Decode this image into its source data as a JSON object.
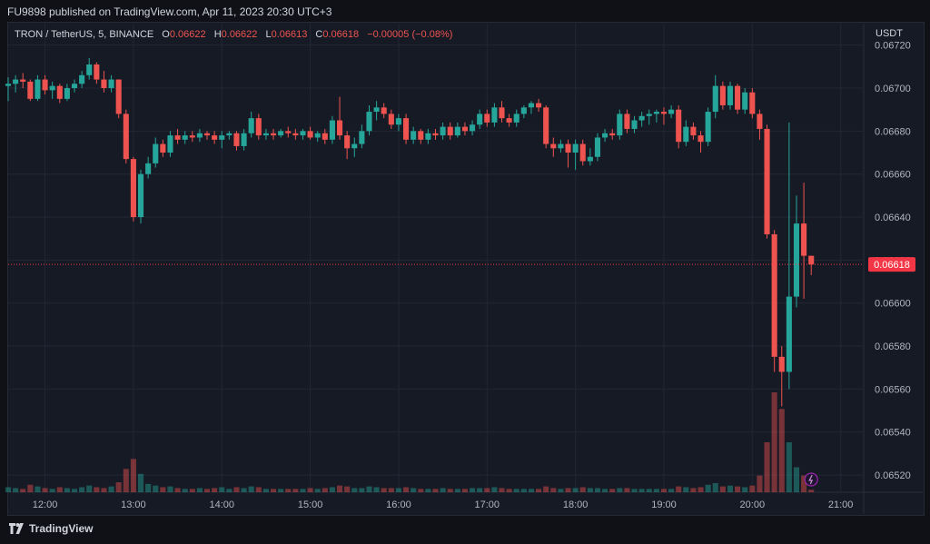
{
  "header": {
    "publisher": "FU9898 published on TradingView.com, Apr 11, 2023 20:30 UTC+3"
  },
  "legend": {
    "symbol": "TRON / TetherUS, 5, BINANCE",
    "o_label": "O",
    "o": "0.06622",
    "h_label": "H",
    "h": "0.06622",
    "l_label": "L",
    "l": "0.06613",
    "c_label": "C",
    "c": "0.06618",
    "change": "−0.00005 (−0.08%)"
  },
  "price_axis": {
    "unit": "USDT",
    "last_price": "0.06618",
    "last_price_value": 0.06618
  },
  "footer": {
    "brand": "TradingView"
  },
  "colors": {
    "up": "#26a69a",
    "down": "#ef5350",
    "background": "#161a25",
    "grid": "#232735",
    "last_price_tag": "#f23645"
  },
  "chart_data": {
    "type": "candlestick",
    "timeframe": "5",
    "x_tick_labels": [
      "12:00",
      "13:00",
      "14:00",
      "15:00",
      "16:00",
      "17:00",
      "18:00",
      "19:00",
      "20:00",
      "21:00"
    ],
    "y_tick_labels": [
      "0.06720",
      "0.06700",
      "0.06680",
      "0.06660",
      "0.06640",
      "0.06620",
      "0.06600",
      "0.06580",
      "0.06560",
      "0.06540",
      "0.06520"
    ],
    "ylim": [
      0.06512,
      0.0673
    ],
    "x_start": "11:35",
    "x_end": "21:15",
    "grid": true,
    "candles": [
      {
        "t": "11:35",
        "o": 0.06701,
        "h": 0.06705,
        "l": 0.06694,
        "c": 0.06702,
        "v": 6
      },
      {
        "t": "11:40",
        "o": 0.06702,
        "h": 0.06706,
        "l": 0.06698,
        "c": 0.06704,
        "v": 5
      },
      {
        "t": "11:45",
        "o": 0.06704,
        "h": 0.06707,
        "l": 0.067,
        "c": 0.06703,
        "v": 4
      },
      {
        "t": "11:50",
        "o": 0.06703,
        "h": 0.06704,
        "l": 0.06694,
        "c": 0.06695,
        "v": 9
      },
      {
        "t": "11:55",
        "o": 0.06695,
        "h": 0.06706,
        "l": 0.06694,
        "c": 0.06704,
        "v": 7
      },
      {
        "t": "12:00",
        "o": 0.06704,
        "h": 0.06706,
        "l": 0.06697,
        "c": 0.06699,
        "v": 5
      },
      {
        "t": "12:05",
        "o": 0.06699,
        "h": 0.06703,
        "l": 0.06695,
        "c": 0.06701,
        "v": 4
      },
      {
        "t": "12:10",
        "o": 0.06701,
        "h": 0.06702,
        "l": 0.06693,
        "c": 0.06695,
        "v": 6
      },
      {
        "t": "12:15",
        "o": 0.06695,
        "h": 0.06702,
        "l": 0.06694,
        "c": 0.067,
        "v": 5
      },
      {
        "t": "12:20",
        "o": 0.067,
        "h": 0.06704,
        "l": 0.06698,
        "c": 0.06702,
        "v": 4
      },
      {
        "t": "12:25",
        "o": 0.06702,
        "h": 0.06708,
        "l": 0.067,
        "c": 0.06706,
        "v": 6
      },
      {
        "t": "12:30",
        "o": 0.06706,
        "h": 0.06714,
        "l": 0.06704,
        "c": 0.06711,
        "v": 8
      },
      {
        "t": "12:35",
        "o": 0.06711,
        "h": 0.06712,
        "l": 0.06702,
        "c": 0.06704,
        "v": 6
      },
      {
        "t": "12:40",
        "o": 0.06704,
        "h": 0.06708,
        "l": 0.06698,
        "c": 0.067,
        "v": 5
      },
      {
        "t": "12:45",
        "o": 0.067,
        "h": 0.06706,
        "l": 0.06698,
        "c": 0.06704,
        "v": 7
      },
      {
        "t": "12:50",
        "o": 0.06704,
        "h": 0.06704,
        "l": 0.06686,
        "c": 0.06688,
        "v": 12
      },
      {
        "t": "12:55",
        "o": 0.06688,
        "h": 0.0669,
        "l": 0.06665,
        "c": 0.06667,
        "v": 28
      },
      {
        "t": "13:00",
        "o": 0.06667,
        "h": 0.06668,
        "l": 0.06638,
        "c": 0.0664,
        "v": 40
      },
      {
        "t": "13:05",
        "o": 0.0664,
        "h": 0.06662,
        "l": 0.06637,
        "c": 0.0666,
        "v": 22
      },
      {
        "t": "13:10",
        "o": 0.0666,
        "h": 0.06668,
        "l": 0.06658,
        "c": 0.06665,
        "v": 10
      },
      {
        "t": "13:15",
        "o": 0.06665,
        "h": 0.06677,
        "l": 0.06663,
        "c": 0.06674,
        "v": 8
      },
      {
        "t": "13:20",
        "o": 0.06674,
        "h": 0.06676,
        "l": 0.06668,
        "c": 0.0667,
        "v": 6
      },
      {
        "t": "13:25",
        "o": 0.0667,
        "h": 0.0668,
        "l": 0.06668,
        "c": 0.06678,
        "v": 7
      },
      {
        "t": "13:30",
        "o": 0.06678,
        "h": 0.06681,
        "l": 0.06674,
        "c": 0.06676,
        "v": 5
      },
      {
        "t": "13:35",
        "o": 0.06676,
        "h": 0.0668,
        "l": 0.06674,
        "c": 0.06678,
        "v": 4
      },
      {
        "t": "13:40",
        "o": 0.06678,
        "h": 0.0668,
        "l": 0.06675,
        "c": 0.06677,
        "v": 4
      },
      {
        "t": "13:45",
        "o": 0.06677,
        "h": 0.06681,
        "l": 0.06675,
        "c": 0.06679,
        "v": 5
      },
      {
        "t": "13:50",
        "o": 0.06679,
        "h": 0.0668,
        "l": 0.06676,
        "c": 0.06678,
        "v": 4
      },
      {
        "t": "13:55",
        "o": 0.06678,
        "h": 0.0668,
        "l": 0.06674,
        "c": 0.06676,
        "v": 5
      },
      {
        "t": "14:00",
        "o": 0.06676,
        "h": 0.0668,
        "l": 0.06672,
        "c": 0.06678,
        "v": 6
      },
      {
        "t": "14:05",
        "o": 0.06678,
        "h": 0.0668,
        "l": 0.06676,
        "c": 0.06679,
        "v": 4
      },
      {
        "t": "14:10",
        "o": 0.06679,
        "h": 0.0668,
        "l": 0.06671,
        "c": 0.06673,
        "v": 6
      },
      {
        "t": "14:15",
        "o": 0.06673,
        "h": 0.06681,
        "l": 0.06671,
        "c": 0.06679,
        "v": 5
      },
      {
        "t": "14:20",
        "o": 0.06679,
        "h": 0.06689,
        "l": 0.06677,
        "c": 0.06686,
        "v": 7
      },
      {
        "t": "14:25",
        "o": 0.06686,
        "h": 0.06688,
        "l": 0.06676,
        "c": 0.06678,
        "v": 6
      },
      {
        "t": "14:30",
        "o": 0.06678,
        "h": 0.06681,
        "l": 0.06676,
        "c": 0.06679,
        "v": 4
      },
      {
        "t": "14:35",
        "o": 0.06679,
        "h": 0.06681,
        "l": 0.06676,
        "c": 0.06678,
        "v": 4
      },
      {
        "t": "14:40",
        "o": 0.06678,
        "h": 0.06681,
        "l": 0.06677,
        "c": 0.0668,
        "v": 4
      },
      {
        "t": "14:45",
        "o": 0.0668,
        "h": 0.06682,
        "l": 0.06677,
        "c": 0.06679,
        "v": 4
      },
      {
        "t": "14:50",
        "o": 0.06679,
        "h": 0.06681,
        "l": 0.06676,
        "c": 0.06678,
        "v": 4
      },
      {
        "t": "14:55",
        "o": 0.06678,
        "h": 0.06681,
        "l": 0.06676,
        "c": 0.0668,
        "v": 4
      },
      {
        "t": "15:00",
        "o": 0.0668,
        "h": 0.06682,
        "l": 0.06676,
        "c": 0.06677,
        "v": 5
      },
      {
        "t": "15:05",
        "o": 0.06677,
        "h": 0.0668,
        "l": 0.06675,
        "c": 0.06679,
        "v": 4
      },
      {
        "t": "15:10",
        "o": 0.06679,
        "h": 0.06681,
        "l": 0.06674,
        "c": 0.06676,
        "v": 5
      },
      {
        "t": "15:15",
        "o": 0.06676,
        "h": 0.06687,
        "l": 0.06674,
        "c": 0.06685,
        "v": 6
      },
      {
        "t": "15:20",
        "o": 0.06685,
        "h": 0.06696,
        "l": 0.06676,
        "c": 0.06678,
        "v": 8
      },
      {
        "t": "15:25",
        "o": 0.06678,
        "h": 0.0668,
        "l": 0.06667,
        "c": 0.06672,
        "v": 7
      },
      {
        "t": "15:30",
        "o": 0.06672,
        "h": 0.06677,
        "l": 0.06668,
        "c": 0.06674,
        "v": 5
      },
      {
        "t": "15:35",
        "o": 0.06674,
        "h": 0.06683,
        "l": 0.06672,
        "c": 0.0668,
        "v": 5
      },
      {
        "t": "15:40",
        "o": 0.0668,
        "h": 0.06692,
        "l": 0.06678,
        "c": 0.06689,
        "v": 7
      },
      {
        "t": "15:45",
        "o": 0.06689,
        "h": 0.06694,
        "l": 0.06685,
        "c": 0.06691,
        "v": 6
      },
      {
        "t": "15:50",
        "o": 0.06691,
        "h": 0.06693,
        "l": 0.06686,
        "c": 0.06688,
        "v": 5
      },
      {
        "t": "15:55",
        "o": 0.06688,
        "h": 0.0669,
        "l": 0.06681,
        "c": 0.06683,
        "v": 5
      },
      {
        "t": "16:00",
        "o": 0.06683,
        "h": 0.06688,
        "l": 0.0668,
        "c": 0.06686,
        "v": 5
      },
      {
        "t": "16:05",
        "o": 0.06686,
        "h": 0.06688,
        "l": 0.06674,
        "c": 0.06676,
        "v": 6
      },
      {
        "t": "16:10",
        "o": 0.06676,
        "h": 0.06682,
        "l": 0.06674,
        "c": 0.0668,
        "v": 5
      },
      {
        "t": "16:15",
        "o": 0.0668,
        "h": 0.06681,
        "l": 0.06674,
        "c": 0.06676,
        "v": 4
      },
      {
        "t": "16:20",
        "o": 0.06676,
        "h": 0.06681,
        "l": 0.06674,
        "c": 0.06679,
        "v": 4
      },
      {
        "t": "16:25",
        "o": 0.06679,
        "h": 0.06681,
        "l": 0.06676,
        "c": 0.06678,
        "v": 4
      },
      {
        "t": "16:30",
        "o": 0.06678,
        "h": 0.06684,
        "l": 0.06676,
        "c": 0.06682,
        "v": 5
      },
      {
        "t": "16:35",
        "o": 0.06682,
        "h": 0.06684,
        "l": 0.06676,
        "c": 0.06678,
        "v": 4
      },
      {
        "t": "16:40",
        "o": 0.06678,
        "h": 0.06684,
        "l": 0.06677,
        "c": 0.06682,
        "v": 4
      },
      {
        "t": "16:45",
        "o": 0.06682,
        "h": 0.06684,
        "l": 0.06678,
        "c": 0.0668,
        "v": 4
      },
      {
        "t": "16:50",
        "o": 0.0668,
        "h": 0.06685,
        "l": 0.06678,
        "c": 0.06683,
        "v": 5
      },
      {
        "t": "16:55",
        "o": 0.06683,
        "h": 0.0669,
        "l": 0.06681,
        "c": 0.06688,
        "v": 5
      },
      {
        "t": "17:00",
        "o": 0.06688,
        "h": 0.0669,
        "l": 0.06682,
        "c": 0.06684,
        "v": 5
      },
      {
        "t": "17:05",
        "o": 0.06684,
        "h": 0.06693,
        "l": 0.06682,
        "c": 0.06691,
        "v": 6
      },
      {
        "t": "17:10",
        "o": 0.06691,
        "h": 0.06694,
        "l": 0.06684,
        "c": 0.06686,
        "v": 5
      },
      {
        "t": "17:15",
        "o": 0.06686,
        "h": 0.06688,
        "l": 0.06682,
        "c": 0.06684,
        "v": 4
      },
      {
        "t": "17:20",
        "o": 0.06684,
        "h": 0.0669,
        "l": 0.06682,
        "c": 0.06688,
        "v": 4
      },
      {
        "t": "17:25",
        "o": 0.06688,
        "h": 0.06692,
        "l": 0.06686,
        "c": 0.06691,
        "v": 4
      },
      {
        "t": "17:30",
        "o": 0.06691,
        "h": 0.06694,
        "l": 0.06688,
        "c": 0.06693,
        "v": 4
      },
      {
        "t": "17:35",
        "o": 0.06693,
        "h": 0.06695,
        "l": 0.06689,
        "c": 0.06691,
        "v": 4
      },
      {
        "t": "17:40",
        "o": 0.06691,
        "h": 0.06692,
        "l": 0.06672,
        "c": 0.06674,
        "v": 7
      },
      {
        "t": "17:45",
        "o": 0.06674,
        "h": 0.06677,
        "l": 0.06668,
        "c": 0.06672,
        "v": 5
      },
      {
        "t": "17:50",
        "o": 0.06672,
        "h": 0.06676,
        "l": 0.0667,
        "c": 0.06674,
        "v": 4
      },
      {
        "t": "17:55",
        "o": 0.06674,
        "h": 0.06676,
        "l": 0.06663,
        "c": 0.0667,
        "v": 5
      },
      {
        "t": "18:00",
        "o": 0.0667,
        "h": 0.06676,
        "l": 0.06662,
        "c": 0.06674,
        "v": 5
      },
      {
        "t": "18:05",
        "o": 0.06674,
        "h": 0.06676,
        "l": 0.06664,
        "c": 0.06666,
        "v": 6
      },
      {
        "t": "18:10",
        "o": 0.06666,
        "h": 0.06672,
        "l": 0.06664,
        "c": 0.06668,
        "v": 5
      },
      {
        "t": "18:15",
        "o": 0.06668,
        "h": 0.06679,
        "l": 0.06666,
        "c": 0.06677,
        "v": 5
      },
      {
        "t": "18:20",
        "o": 0.06677,
        "h": 0.06681,
        "l": 0.06675,
        "c": 0.06679,
        "v": 4
      },
      {
        "t": "18:25",
        "o": 0.06679,
        "h": 0.06681,
        "l": 0.06676,
        "c": 0.06678,
        "v": 4
      },
      {
        "t": "18:30",
        "o": 0.06678,
        "h": 0.0669,
        "l": 0.06676,
        "c": 0.06688,
        "v": 5
      },
      {
        "t": "18:35",
        "o": 0.06688,
        "h": 0.0669,
        "l": 0.06679,
        "c": 0.06681,
        "v": 5
      },
      {
        "t": "18:40",
        "o": 0.06681,
        "h": 0.06687,
        "l": 0.06679,
        "c": 0.06685,
        "v": 4
      },
      {
        "t": "18:45",
        "o": 0.06685,
        "h": 0.06689,
        "l": 0.06682,
        "c": 0.06687,
        "v": 4
      },
      {
        "t": "18:50",
        "o": 0.06687,
        "h": 0.0669,
        "l": 0.06683,
        "c": 0.06688,
        "v": 4
      },
      {
        "t": "18:55",
        "o": 0.06688,
        "h": 0.0669,
        "l": 0.06684,
        "c": 0.06689,
        "v": 4
      },
      {
        "t": "19:00",
        "o": 0.06689,
        "h": 0.06691,
        "l": 0.06683,
        "c": 0.06688,
        "v": 4
      },
      {
        "t": "19:05",
        "o": 0.06688,
        "h": 0.06692,
        "l": 0.06686,
        "c": 0.0669,
        "v": 4
      },
      {
        "t": "19:10",
        "o": 0.0669,
        "h": 0.06692,
        "l": 0.06672,
        "c": 0.06675,
        "v": 7
      },
      {
        "t": "19:15",
        "o": 0.06675,
        "h": 0.06685,
        "l": 0.06673,
        "c": 0.06682,
        "v": 6
      },
      {
        "t": "19:20",
        "o": 0.06682,
        "h": 0.06684,
        "l": 0.06676,
        "c": 0.06678,
        "v": 5
      },
      {
        "t": "19:25",
        "o": 0.06678,
        "h": 0.0668,
        "l": 0.0667,
        "c": 0.06675,
        "v": 6
      },
      {
        "t": "19:30",
        "o": 0.06675,
        "h": 0.06691,
        "l": 0.06673,
        "c": 0.06689,
        "v": 9
      },
      {
        "t": "19:35",
        "o": 0.06689,
        "h": 0.06706,
        "l": 0.06686,
        "c": 0.06701,
        "v": 11
      },
      {
        "t": "19:40",
        "o": 0.06701,
        "h": 0.06703,
        "l": 0.0669,
        "c": 0.06692,
        "v": 7
      },
      {
        "t": "19:45",
        "o": 0.06692,
        "h": 0.06703,
        "l": 0.0669,
        "c": 0.06701,
        "v": 8
      },
      {
        "t": "19:50",
        "o": 0.06701,
        "h": 0.06702,
        "l": 0.06688,
        "c": 0.0669,
        "v": 7
      },
      {
        "t": "19:55",
        "o": 0.0669,
        "h": 0.067,
        "l": 0.06688,
        "c": 0.06698,
        "v": 6
      },
      {
        "t": "20:00",
        "o": 0.06698,
        "h": 0.067,
        "l": 0.06686,
        "c": 0.06688,
        "v": 8
      },
      {
        "t": "20:05",
        "o": 0.06688,
        "h": 0.0669,
        "l": 0.06676,
        "c": 0.06681,
        "v": 20
      },
      {
        "t": "20:10",
        "o": 0.06681,
        "h": 0.06683,
        "l": 0.0663,
        "c": 0.06632,
        "v": 60
      },
      {
        "t": "20:15",
        "o": 0.06632,
        "h": 0.06634,
        "l": 0.06568,
        "c": 0.06575,
        "v": 120
      },
      {
        "t": "20:20",
        "o": 0.06575,
        "h": 0.0658,
        "l": 0.06552,
        "c": 0.06568,
        "v": 100
      },
      {
        "t": "20:25",
        "o": 0.06568,
        "h": 0.06684,
        "l": 0.0656,
        "c": 0.06603,
        "v": 60
      },
      {
        "t": "20:30",
        "o": 0.06603,
        "h": 0.0665,
        "l": 0.06598,
        "c": 0.06637,
        "v": 30
      },
      {
        "t": "20:35",
        "o": 0.06637,
        "h": 0.06656,
        "l": 0.06602,
        "c": 0.06622,
        "v": 20
      },
      {
        "t": "20:40",
        "o": 0.06622,
        "h": 0.06622,
        "l": 0.06613,
        "c": 0.06618,
        "v": 3
      }
    ]
  }
}
